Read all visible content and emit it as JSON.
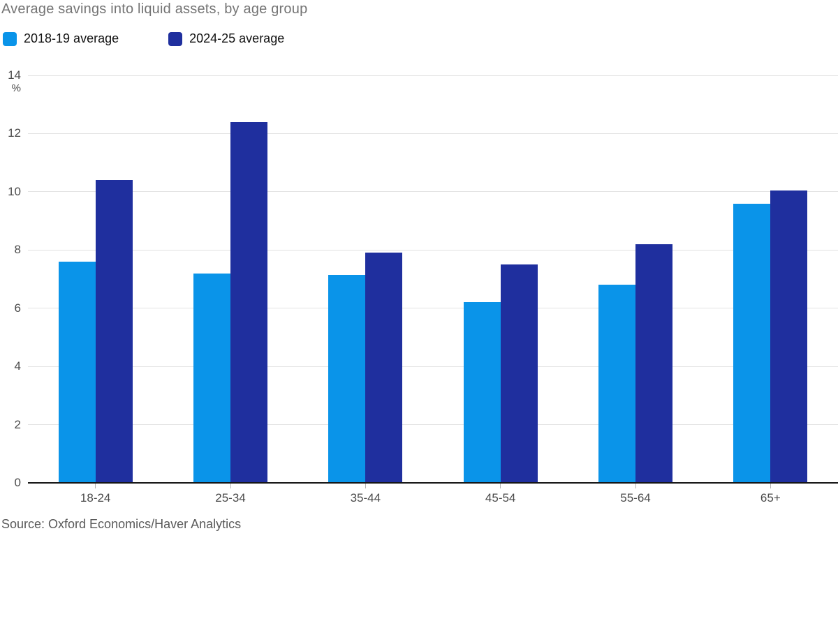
{
  "page": {
    "title": "Average savings into liquid assets, by age group",
    "source": "Source: Oxford Economics/Haver Analytics"
  },
  "legend": {
    "items": [
      {
        "label": "2018-19 average",
        "color": "#0a94e9"
      },
      {
        "label": "2024-25 average",
        "color": "#1f2f9e"
      }
    ]
  },
  "chart_data": {
    "type": "bar",
    "title": "Average savings into liquid assets, by age group",
    "categories": [
      "18-24",
      "25-34",
      "35-44",
      "45-54",
      "55-64",
      "65+"
    ],
    "series": [
      {
        "name": "2018-19 average",
        "color": "#0a94e9",
        "values": [
          7.6,
          7.2,
          7.15,
          6.2,
          6.8,
          9.6
        ]
      },
      {
        "name": "2024-25 average",
        "color": "#1f2f9e",
        "values": [
          10.4,
          12.4,
          7.9,
          7.5,
          8.2,
          10.05
        ]
      }
    ],
    "ylabel": "%",
    "ylim": [
      0,
      14
    ],
    "yticks": [
      0,
      2,
      4,
      6,
      8,
      10,
      12,
      14
    ],
    "grid": true,
    "legend_position": "top-left",
    "colors": {
      "grid": "#e2e2e2",
      "axis": "#161616",
      "title_text": "#747474",
      "tick_text": "#4a4a4a",
      "source_text": "#595959"
    }
  }
}
